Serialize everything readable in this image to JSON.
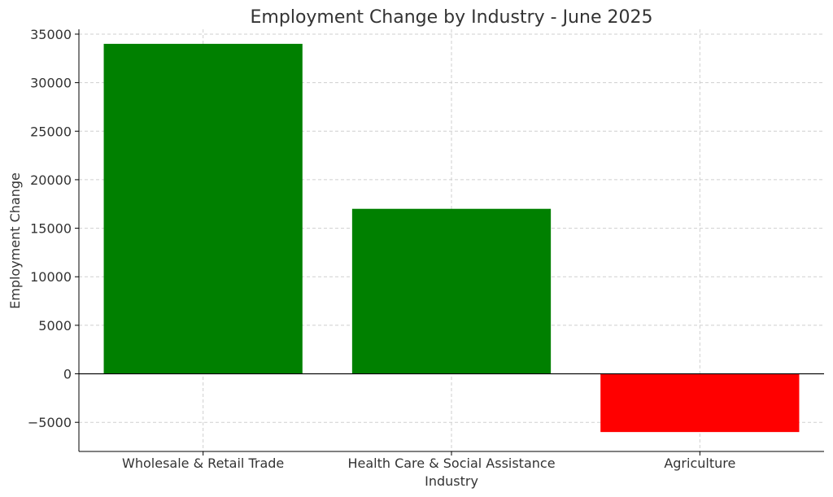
{
  "chart_data": {
    "type": "bar",
    "title": "Employment Change by Industry - June 2025",
    "xlabel": "Industry",
    "ylabel": "Employment Change",
    "categories": [
      "Wholesale & Retail Trade",
      "Health Care & Social Assistance",
      "Agriculture"
    ],
    "values": [
      34000,
      17000,
      -6000
    ],
    "colors": [
      "#008000",
      "#008000",
      "#ff0000"
    ],
    "ylim": [
      -8000,
      35500
    ],
    "yticks": [
      -5000,
      0,
      5000,
      10000,
      15000,
      20000,
      25000,
      30000,
      35000
    ],
    "ytick_labels": [
      "−5000",
      "0",
      "5000",
      "10000",
      "15000",
      "20000",
      "25000",
      "30000",
      "35000"
    ],
    "grid": true,
    "legend": "none"
  }
}
